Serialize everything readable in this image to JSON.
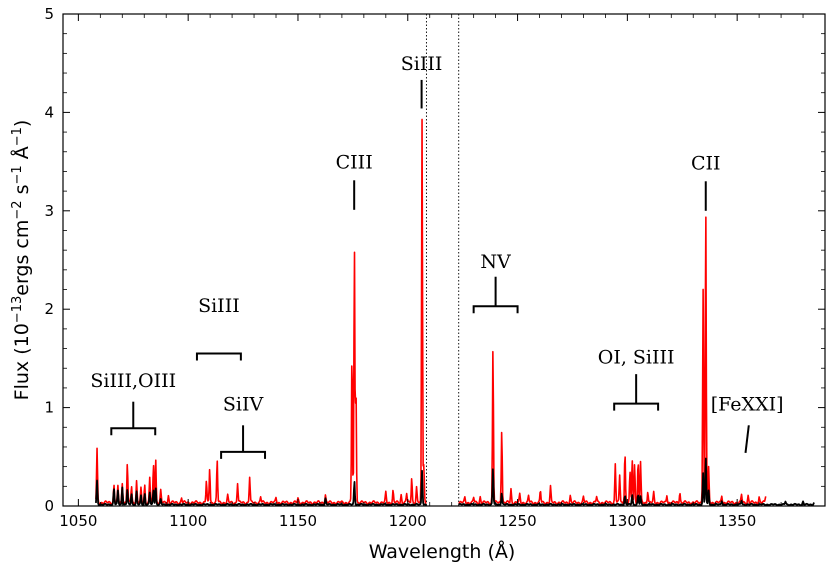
{
  "chart_data": {
    "type": "line",
    "title": "",
    "xlabel": "Wavelength (Å)",
    "ylabel": {
      "pre": "Flux (10",
      "exp1": "−13",
      "mid1": "ergs cm",
      "exp2": "−2",
      "mid2": " s",
      "exp3": "−1",
      "mid3": " Å",
      "exp4": "−1",
      "post": ")"
    },
    "xlim": [
      1043,
      1390
    ],
    "ylim": [
      0,
      5
    ],
    "xticks": [
      1050,
      1100,
      1150,
      1200,
      1250,
      1300,
      1350
    ],
    "yticks": [
      0,
      1,
      2,
      3,
      4,
      5
    ],
    "dotted_vlines": [
      1208.5,
      1223.2
    ],
    "gap_range": [
      1208.5,
      1223.2
    ],
    "series": [
      {
        "name": "red spectrum",
        "color": "#ff0000",
        "continuum": 0.035,
        "x_start": 1058,
        "x_end": 1363,
        "peaks": [
          {
            "x": 1058.5,
            "y": 0.54
          },
          {
            "x": 1066.2,
            "y": 0.18
          },
          {
            "x": 1068.0,
            "y": 0.16
          },
          {
            "x": 1070.0,
            "y": 0.2
          },
          {
            "x": 1072.3,
            "y": 0.4
          },
          {
            "x": 1074.2,
            "y": 0.17
          },
          {
            "x": 1076.5,
            "y": 0.22
          },
          {
            "x": 1078.5,
            "y": 0.14
          },
          {
            "x": 1080.2,
            "y": 0.18
          },
          {
            "x": 1082.5,
            "y": 0.25
          },
          {
            "x": 1084.2,
            "y": 0.38
          },
          {
            "x": 1085.2,
            "y": 0.45
          },
          {
            "x": 1087.5,
            "y": 0.12
          },
          {
            "x": 1091.0,
            "y": 0.07
          },
          {
            "x": 1097.0,
            "y": 0.05
          },
          {
            "x": 1108.3,
            "y": 0.22
          },
          {
            "x": 1109.8,
            "y": 0.35
          },
          {
            "x": 1113.2,
            "y": 0.43
          },
          {
            "x": 1118.0,
            "y": 0.07
          },
          {
            "x": 1122.5,
            "y": 0.2
          },
          {
            "x": 1128.0,
            "y": 0.26
          },
          {
            "x": 1133.0,
            "y": 0.06
          },
          {
            "x": 1140.0,
            "y": 0.05
          },
          {
            "x": 1150.0,
            "y": 0.04
          },
          {
            "x": 1162.5,
            "y": 0.08
          },
          {
            "x": 1174.6,
            "y": 1.55
          },
          {
            "x": 1175.7,
            "y": 2.6
          },
          {
            "x": 1176.4,
            "y": 1.2
          },
          {
            "x": 1190.0,
            "y": 0.1
          },
          {
            "x": 1193.3,
            "y": 0.12
          },
          {
            "x": 1197.0,
            "y": 0.08
          },
          {
            "x": 1199.5,
            "y": 0.09
          },
          {
            "x": 1201.8,
            "y": 0.26
          },
          {
            "x": 1204.0,
            "y": 0.15
          },
          {
            "x": 1206.5,
            "y": 3.9
          },
          {
            "x": 1207.3,
            "y": 0.4
          },
          {
            "x": 1226.0,
            "y": 0.05
          },
          {
            "x": 1230.0,
            "y": 0.05
          },
          {
            "x": 1233.0,
            "y": 0.06
          },
          {
            "x": 1238.8,
            "y": 1.58
          },
          {
            "x": 1242.8,
            "y": 0.75
          },
          {
            "x": 1247.0,
            "y": 0.14
          },
          {
            "x": 1251.0,
            "y": 0.08
          },
          {
            "x": 1255.0,
            "y": 0.07
          },
          {
            "x": 1260.4,
            "y": 0.12
          },
          {
            "x": 1265.0,
            "y": 0.16
          },
          {
            "x": 1274.0,
            "y": 0.07
          },
          {
            "x": 1280.0,
            "y": 0.06
          },
          {
            "x": 1286.0,
            "y": 0.06
          },
          {
            "x": 1294.5,
            "y": 0.4
          },
          {
            "x": 1296.5,
            "y": 0.28
          },
          {
            "x": 1298.9,
            "y": 0.52
          },
          {
            "x": 1301.2,
            "y": 0.3
          },
          {
            "x": 1302.2,
            "y": 0.44
          },
          {
            "x": 1303.3,
            "y": 0.4
          },
          {
            "x": 1304.9,
            "y": 0.42
          },
          {
            "x": 1306.0,
            "y": 0.41
          },
          {
            "x": 1309.3,
            "y": 0.12
          },
          {
            "x": 1312.0,
            "y": 0.1
          },
          {
            "x": 1318.0,
            "y": 0.08
          },
          {
            "x": 1323.9,
            "y": 0.11
          },
          {
            "x": 1334.5,
            "y": 2.18
          },
          {
            "x": 1335.7,
            "y": 2.98
          },
          {
            "x": 1337.0,
            "y": 0.35
          },
          {
            "x": 1343.0,
            "y": 0.07
          },
          {
            "x": 1352.0,
            "y": 0.08
          },
          {
            "x": 1355.0,
            "y": 0.07
          },
          {
            "x": 1360.0,
            "y": 0.06
          },
          {
            "x": 1363.0,
            "y": 0.07
          }
        ]
      },
      {
        "name": "black spectrum",
        "color": "#000000",
        "continuum": 0.015,
        "x_start": 1058,
        "x_end": 1385,
        "peaks": [
          {
            "x": 1058.5,
            "y": 0.24
          },
          {
            "x": 1066.2,
            "y": 0.16
          },
          {
            "x": 1068.0,
            "y": 0.14
          },
          {
            "x": 1070.0,
            "y": 0.18
          },
          {
            "x": 1072.3,
            "y": 0.15
          },
          {
            "x": 1074.2,
            "y": 0.11
          },
          {
            "x": 1076.5,
            "y": 0.13
          },
          {
            "x": 1078.5,
            "y": 0.09
          },
          {
            "x": 1080.2,
            "y": 0.11
          },
          {
            "x": 1082.5,
            "y": 0.12
          },
          {
            "x": 1084.2,
            "y": 0.15
          },
          {
            "x": 1085.2,
            "y": 0.17
          },
          {
            "x": 1087.5,
            "y": 0.05
          },
          {
            "x": 1162.5,
            "y": 0.06
          },
          {
            "x": 1175.7,
            "y": 0.24
          },
          {
            "x": 1206.5,
            "y": 0.35
          },
          {
            "x": 1238.8,
            "y": 0.37
          },
          {
            "x": 1242.8,
            "y": 0.12
          },
          {
            "x": 1298.9,
            "y": 0.09
          },
          {
            "x": 1302.2,
            "y": 0.1
          },
          {
            "x": 1304.9,
            "y": 0.1
          },
          {
            "x": 1306.0,
            "y": 0.08
          },
          {
            "x": 1334.5,
            "y": 0.32
          },
          {
            "x": 1335.7,
            "y": 0.48
          },
          {
            "x": 1337.0,
            "y": 0.14
          },
          {
            "x": 1343.0,
            "y": 0.04
          },
          {
            "x": 1352.0,
            "y": 0.04
          },
          {
            "x": 1372.0,
            "y": 0.03
          },
          {
            "x": 1380.0,
            "y": 0.03
          },
          {
            "x": 1385.0,
            "y": 0.02
          }
        ]
      }
    ],
    "annotations": [
      {
        "id": "siii-oiii",
        "text": "SiIII,OIII",
        "type": "bracket",
        "x1": 1065,
        "x2": 1085,
        "y": 0.79,
        "stem": 0.27,
        "text_y": 1.21
      },
      {
        "id": "siii-1110",
        "text": "SiIII",
        "type": "bracket",
        "x1": 1104,
        "x2": 1124,
        "y": 1.55,
        "stem": 0,
        "text_y": 1.97
      },
      {
        "id": "siiv",
        "text": "SiIV",
        "type": "bracket",
        "x1": 1115,
        "x2": 1135,
        "y": 0.55,
        "stem": 0.27,
        "text_y": 0.97
      },
      {
        "id": "ciii",
        "text": "CIII",
        "type": "tick",
        "x1": 1175.6,
        "x2": 1175.6,
        "y": 3.01,
        "y2": 3.31,
        "text_y": 3.43
      },
      {
        "id": "siii-1206",
        "text": "SiIII",
        "type": "tick",
        "x1": 1206.3,
        "x2": 1206.3,
        "y": 4.04,
        "y2": 4.33,
        "text_y": 4.43
      },
      {
        "id": "nv",
        "text": "NV",
        "type": "bracket",
        "x1": 1230,
        "x2": 1250,
        "y": 2.03,
        "stem": 0.3,
        "text_y": 2.42
      },
      {
        "id": "oi-siii",
        "text": "OI, SiIII",
        "type": "bracket",
        "x1": 1294,
        "x2": 1314,
        "y": 1.04,
        "stem": 0.3,
        "text_y": 1.45
      },
      {
        "id": "cii",
        "text": "CII",
        "type": "tick",
        "x1": 1335.7,
        "x2": 1335.7,
        "y": 3.0,
        "y2": 3.3,
        "text_y": 3.42
      },
      {
        "id": "fexxi",
        "text": "[FeXXI]",
        "type": "tick",
        "x1": 1353.8,
        "x2": 1355.3,
        "y": 0.54,
        "y2": 0.82,
        "text_y": 0.97
      }
    ]
  }
}
